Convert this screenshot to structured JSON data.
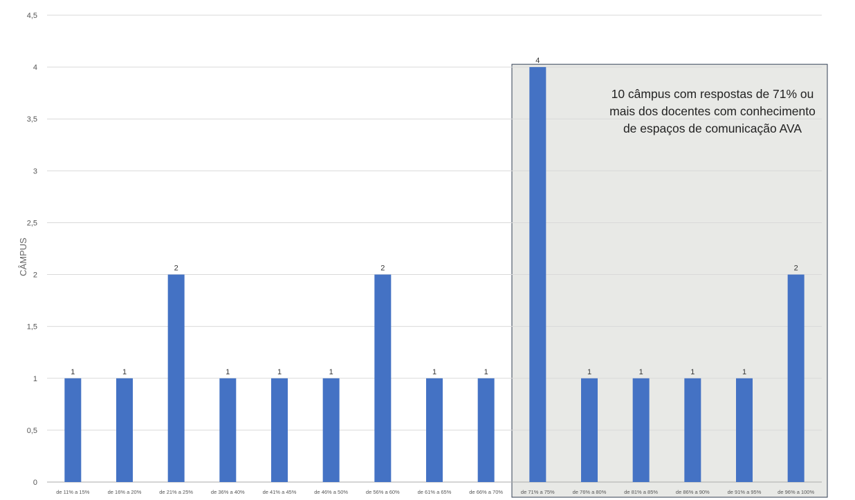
{
  "chart_data": {
    "type": "bar",
    "ylabel": "CÂMPUS",
    "xlabel": "",
    "ylim": [
      0,
      4.5
    ],
    "yticks": [
      "0",
      "0,5",
      "1",
      "1,5",
      "2",
      "2,5",
      "3",
      "3,5",
      "4",
      "4,5"
    ],
    "categories": [
      "de 11% a 15%",
      "de 16% a 20%",
      "de 21% a 25%",
      "de 36% a 40%",
      "de 41% a 45%",
      "de 46% a 50%",
      "de 56% a 60%",
      "de 61% a 65%",
      "de 66% a 70%",
      "de 71% a 75%",
      "de 76% a 80%",
      "de 81% a 85%",
      "de 86% a 90%",
      "de 91% a 95%",
      "de 96% a 100%"
    ],
    "values": [
      1,
      1,
      2,
      1,
      1,
      1,
      2,
      1,
      1,
      4,
      1,
      1,
      1,
      1,
      2
    ],
    "data_labels": [
      "1",
      "1",
      "2",
      "1",
      "1",
      "1",
      "2",
      "1",
      "1",
      "4",
      "1",
      "1",
      "1",
      "1",
      "2"
    ],
    "grid": true,
    "highlight": {
      "from_category": "de 71% a 75%",
      "to_category": "de 96% a 100%",
      "fill": "#e8e9e6",
      "border": "#2f3d52"
    },
    "annotation": {
      "lines": [
        "10 câmpus com respostas de 71% ou",
        "mais dos docentes com conhecimento",
        "de espaços de comunicação AVA"
      ]
    },
    "colors": {
      "bar": "#4472c4",
      "grid": "#d9d9d9",
      "axis": "#aaaaaa"
    }
  }
}
